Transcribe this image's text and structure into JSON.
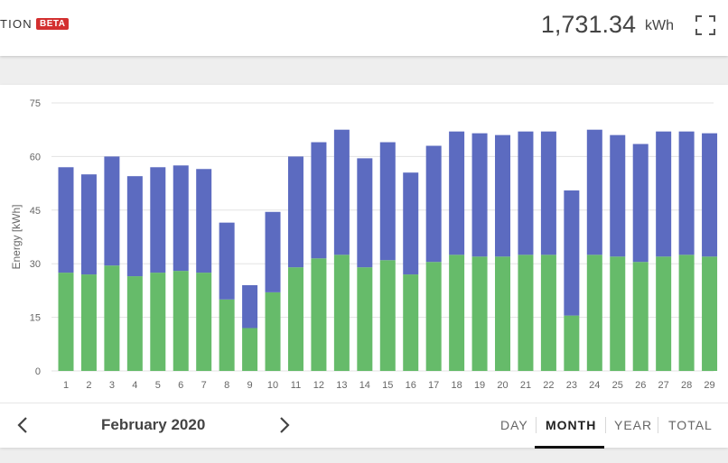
{
  "header": {
    "title_fragment": "TION",
    "badge": "BETA",
    "total_value": "1,731.34",
    "total_unit": "kWh",
    "fullscreen_icon": "fullscreen-icon"
  },
  "colors": {
    "series_bottom": "#66bb6a",
    "series_top": "#5c6bc0",
    "badge": "#d32f2f"
  },
  "footer": {
    "period": "February 2020",
    "prev_icon": "chevron-left-icon",
    "next_icon": "chevron-right-icon",
    "tabs": [
      {
        "label": "DAY",
        "active": false
      },
      {
        "label": "MONTH",
        "active": true
      },
      {
        "label": "YEAR",
        "active": false
      },
      {
        "label": "TOTAL",
        "active": false
      }
    ]
  },
  "chart_data": {
    "type": "bar",
    "stacked": true,
    "ylabel": "Energy [kWh]",
    "xlabel": "",
    "ylim": [
      0,
      75
    ],
    "yticks": [
      0,
      15,
      30,
      45,
      60,
      75
    ],
    "grid": true,
    "categories": [
      "1",
      "2",
      "3",
      "4",
      "5",
      "6",
      "7",
      "8",
      "9",
      "10",
      "11",
      "12",
      "13",
      "14",
      "15",
      "16",
      "17",
      "18",
      "19",
      "20",
      "21",
      "22",
      "23",
      "24",
      "25",
      "26",
      "27",
      "28",
      "29"
    ],
    "series": [
      {
        "color": "#66bb6a",
        "values": [
          27.5,
          27,
          29.5,
          26.5,
          27.5,
          28,
          27.5,
          20,
          12,
          22,
          29,
          31.5,
          32.5,
          29,
          31,
          27,
          30.5,
          32.5,
          32,
          32,
          32.5,
          32.5,
          15.5,
          32.5,
          32,
          30.5,
          32,
          32.5,
          32
        ]
      },
      {
        "color": "#5c6bc0",
        "values": [
          29.5,
          28,
          30.5,
          28,
          29.5,
          29.5,
          29,
          21.5,
          12,
          22.5,
          31,
          32.5,
          35,
          30.5,
          33,
          28.5,
          32.5,
          34.5,
          34.5,
          34,
          34.5,
          34.5,
          35,
          35,
          34,
          33,
          35,
          34.5,
          34.5
        ]
      }
    ]
  }
}
